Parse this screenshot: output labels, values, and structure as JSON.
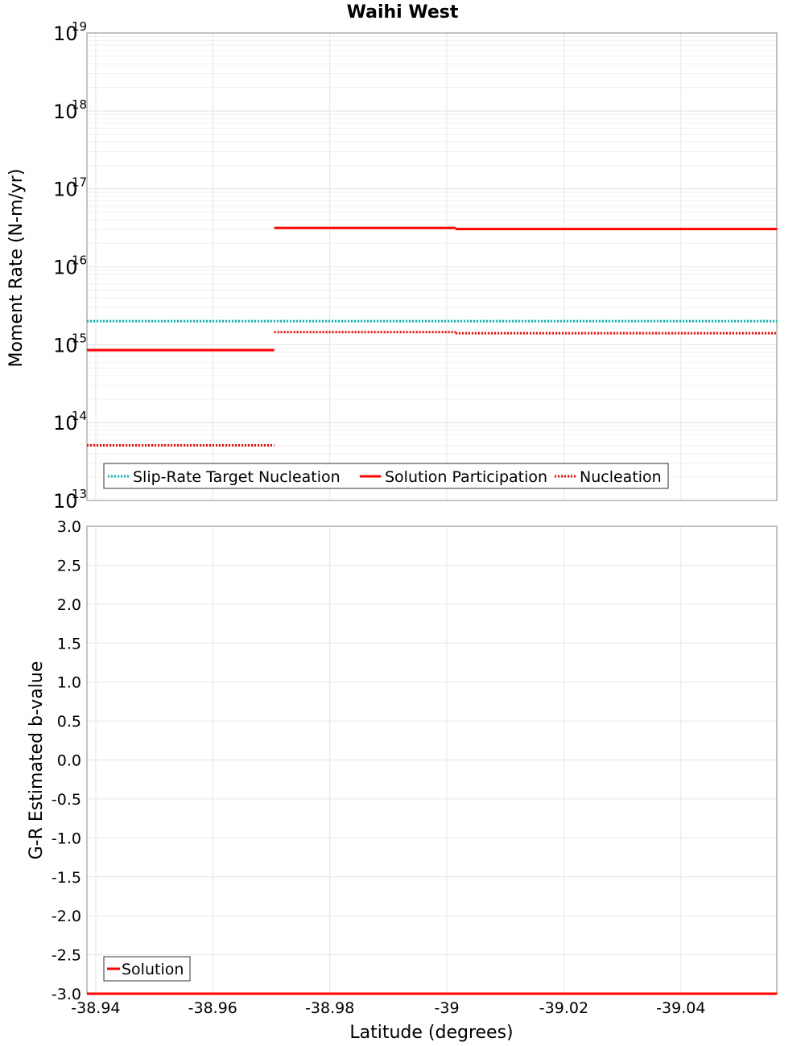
{
  "chart_data": [
    {
      "type": "line",
      "panel": "top",
      "title": "Waihi West",
      "ylabel": "Moment Rate (N-m/yr)",
      "yscale": "log",
      "ylim": [
        10000000000000.0,
        1e+19
      ],
      "xlim": [
        -38.9385,
        -39.0564
      ],
      "x_ticks": [
        "-38.94",
        "-38.96",
        "-38.98",
        "-39",
        "-39.02",
        "-39.04"
      ],
      "x_tick_values": [
        -38.94,
        -38.96,
        -38.98,
        -39.0,
        -39.02,
        -39.04
      ],
      "y_tick_exponents": [
        "13",
        "14",
        "15",
        "16",
        "17",
        "18",
        "19"
      ],
      "y_tick_base": "10",
      "grid": true,
      "legend": "bottom-left",
      "series": [
        {
          "name": "Slip-Rate Target Nucleation",
          "style": "dotted",
          "color": "#00b4b4",
          "segments": [
            {
              "x0": -38.9385,
              "x1": -39.0564,
              "y": 2000000000000000.0
            }
          ]
        },
        {
          "name": "Solution Participation",
          "style": "solid",
          "color": "#ff0000",
          "segments": [
            {
              "x0": -38.9385,
              "x1": -38.9705,
              "y": 850000000000000.0
            },
            {
              "x0": -38.9705,
              "x1": -39.0015,
              "y": 3.15e+16
            },
            {
              "x0": -39.0015,
              "x1": -39.0564,
              "y": 3.05e+16
            }
          ]
        },
        {
          "name": "Nucleation",
          "style": "dotted",
          "color": "#ff0000",
          "segments": [
            {
              "x0": -38.9385,
              "x1": -38.9705,
              "y": 51000000000000.0
            },
            {
              "x0": -38.9705,
              "x1": -39.0015,
              "y": 1450000000000000.0
            },
            {
              "x0": -39.0015,
              "x1": -39.0564,
              "y": 1400000000000000.0
            }
          ]
        }
      ]
    },
    {
      "type": "line",
      "panel": "bottom",
      "ylabel": "G-R Estimated b-value",
      "xlabel": "Latitude (degrees)",
      "ylim": [
        -3.0,
        3.0
      ],
      "xlim": [
        -38.9385,
        -39.0564
      ],
      "x_ticks": [
        "-38.94",
        "-38.96",
        "-38.98",
        "-39",
        "-39.02",
        "-39.04"
      ],
      "x_tick_values": [
        -38.94,
        -38.96,
        -38.98,
        -39.0,
        -39.02,
        -39.04
      ],
      "y_ticks": [
        "3.0",
        "2.5",
        "2.0",
        "1.5",
        "1.0",
        "0.5",
        "0.0",
        "-0.5",
        "-1.0",
        "-1.5",
        "-2.0",
        "-2.5",
        "-3.0"
      ],
      "y_tick_values": [
        3.0,
        2.5,
        2.0,
        1.5,
        1.0,
        0.5,
        0.0,
        -0.5,
        -1.0,
        -1.5,
        -2.0,
        -2.5,
        -3.0
      ],
      "grid": true,
      "legend": "bottom-left",
      "series": [
        {
          "name": "Solution",
          "style": "solid",
          "color": "#ff0000",
          "segments": [
            {
              "x0": -38.9385,
              "x1": -39.0564,
              "y": -3.0
            }
          ]
        }
      ]
    }
  ]
}
